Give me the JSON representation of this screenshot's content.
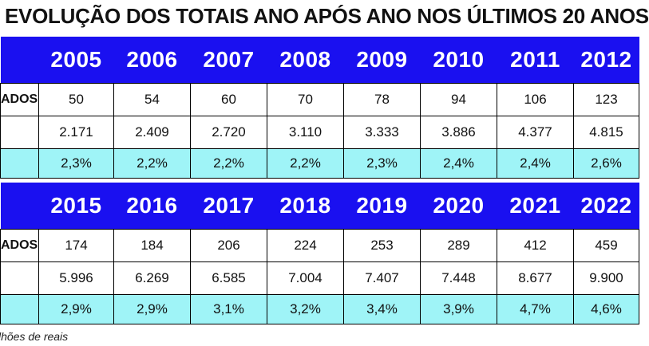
{
  "title": "EVOLUÇÃO DOS TOTAIS ANO APÓS ANO NOS ÚLTIMOS 20 ANOS",
  "blocks": [
    {
      "years": [
        "2005",
        "2006",
        "2007",
        "2008",
        "2009",
        "2010",
        "2011",
        "2012"
      ],
      "row_label_1": "ADOS",
      "row1": [
        "50",
        "54",
        "60",
        "70",
        "78",
        "94",
        "106",
        "123"
      ],
      "row2": [
        "2.171",
        "2.409",
        "2.720",
        "3.110",
        "3.333",
        "3.886",
        "4.377",
        "4.815"
      ],
      "row3": [
        "2,3%",
        "2,2%",
        "2,2%",
        "2,2%",
        "2,3%",
        "2,4%",
        "2,4%",
        "2,6%"
      ]
    },
    {
      "years": [
        "2015",
        "2016",
        "2017",
        "2018",
        "2019",
        "2020",
        "2021",
        "2022"
      ],
      "row_label_1": "ADOS",
      "row1": [
        "174",
        "184",
        "206",
        "224",
        "253",
        "289",
        "412",
        "459"
      ],
      "row2": [
        "5.996",
        "6.269",
        "6.585",
        "7.004",
        "7.407",
        "7.448",
        "8.677",
        "9.900"
      ],
      "row3": [
        "2,9%",
        "2,9%",
        "3,1%",
        "3,2%",
        "3,4%",
        "3,9%",
        "4,7%",
        "4,6%"
      ]
    }
  ],
  "footnote": "lhões de reais",
  "colors": {
    "header": "#1a10f0",
    "highlight_row": "#9ff4f7"
  },
  "chart_data": {
    "type": "table",
    "title": "EVOLUÇÃO DOS TOTAIS ANO APÓS ANO NOS ÚLTIMOS 20 ANOS",
    "columns": [
      "2005",
      "2006",
      "2007",
      "2008",
      "2009",
      "2010",
      "2011",
      "2012",
      "2015",
      "2016",
      "2017",
      "2018",
      "2019",
      "2020",
      "2021",
      "2022"
    ],
    "rows": [
      {
        "label": "ADOS",
        "values": [
          50,
          54,
          60,
          70,
          78,
          94,
          106,
          123,
          174,
          184,
          206,
          224,
          253,
          289,
          412,
          459
        ]
      },
      {
        "label": "",
        "values": [
          2171,
          2409,
          2720,
          3110,
          3333,
          3886,
          4377,
          4815,
          5996,
          6269,
          6585,
          7004,
          7407,
          7448,
          8677,
          9900
        ]
      },
      {
        "label": "",
        "values": [
          "2,3%",
          "2,2%",
          "2,2%",
          "2,2%",
          "2,3%",
          "2,4%",
          "2,4%",
          "2,6%",
          "2,9%",
          "2,9%",
          "3,1%",
          "3,2%",
          "3,4%",
          "3,9%",
          "4,7%",
          "4,6%"
        ]
      }
    ]
  }
}
